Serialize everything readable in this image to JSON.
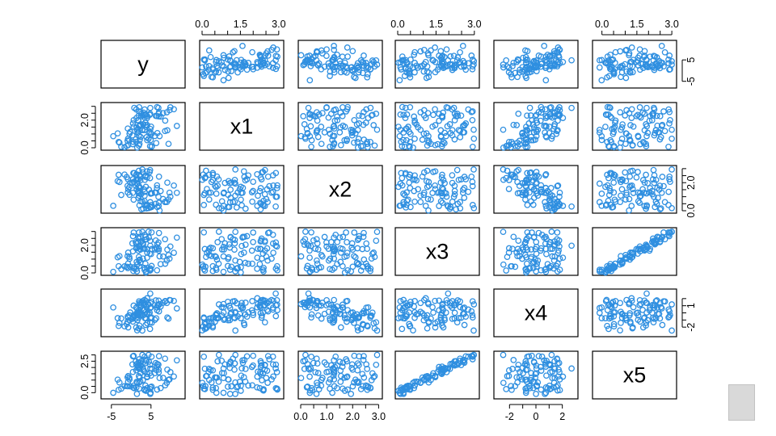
{
  "chart_data": {
    "type": "scatter",
    "plot_kind": "scatterplot-matrix",
    "variables": [
      {
        "name": "y",
        "range": [
          -7,
          13
        ],
        "ticks": [
          -5,
          5
        ],
        "tick_labels": [
          "-5",
          "5"
        ],
        "axis_sides": [
          "bottom",
          "right"
        ]
      },
      {
        "name": "x1",
        "range": [
          0,
          3.1
        ],
        "ticks": [
          0.0,
          0.5,
          1.0,
          1.5,
          2.0,
          2.5,
          3.0
        ],
        "tick_labels": [
          "0.0",
          "",
          "",
          "1.5",
          "",
          "",
          "3.0"
        ],
        "left_tick_labels": [
          "0.0",
          "",
          "",
          "",
          "2.0",
          "",
          ""
        ],
        "axis_sides": [
          "top",
          "left"
        ]
      },
      {
        "name": "x2",
        "range": [
          0,
          3.05
        ],
        "ticks": [
          0.0,
          0.5,
          1.0,
          1.5,
          2.0,
          2.5,
          3.0
        ],
        "tick_labels": [
          "0.0",
          "",
          "1.0",
          "",
          "2.0",
          "",
          "3.0"
        ],
        "right_tick_labels": [
          "0.0",
          "",
          "",
          "",
          "2.0",
          "",
          ""
        ],
        "axis_sides": [
          "bottom",
          "right"
        ]
      },
      {
        "name": "x3",
        "range": [
          0,
          3.1
        ],
        "ticks": [
          0.0,
          0.5,
          1.0,
          1.5,
          2.0,
          2.5,
          3.0
        ],
        "tick_labels": [
          "0.0",
          "",
          "",
          "1.5",
          "",
          "",
          "3.0"
        ],
        "left_tick_labels": [
          "0.0",
          "",
          "",
          "",
          "2.0",
          "",
          ""
        ],
        "axis_sides": [
          "top",
          "left"
        ]
      },
      {
        "name": "x4",
        "range": [
          -3,
          3
        ],
        "ticks": [
          -2,
          -1,
          0,
          1,
          2
        ],
        "tick_labels": [
          "-2",
          "",
          "0",
          "",
          "2"
        ],
        "right_tick_labels": [
          "-2",
          "",
          "",
          "1",
          ""
        ],
        "axis_sides": [
          "bottom",
          "right"
        ]
      },
      {
        "name": "x5",
        "range": [
          -0.3,
          3.1
        ],
        "ticks": [
          0.0,
          0.5,
          1.0,
          1.5,
          2.0,
          2.5,
          3.0
        ],
        "tick_labels": [
          "0.0",
          "",
          "",
          "1.5",
          "",
          "",
          "3.0"
        ],
        "left_tick_labels": [
          "0.0",
          "",
          "",
          "",
          "",
          "2.5",
          ""
        ],
        "axis_sides": [
          "top",
          "left"
        ]
      }
    ],
    "observations": 100,
    "point_color": "#2f8fe0",
    "marker": "open-circle",
    "relationships": {
      "x4~x1": "positive",
      "x4~x2": "negative",
      "x5~x3": "strong positive"
    },
    "grid": false,
    "legend": "none"
  }
}
